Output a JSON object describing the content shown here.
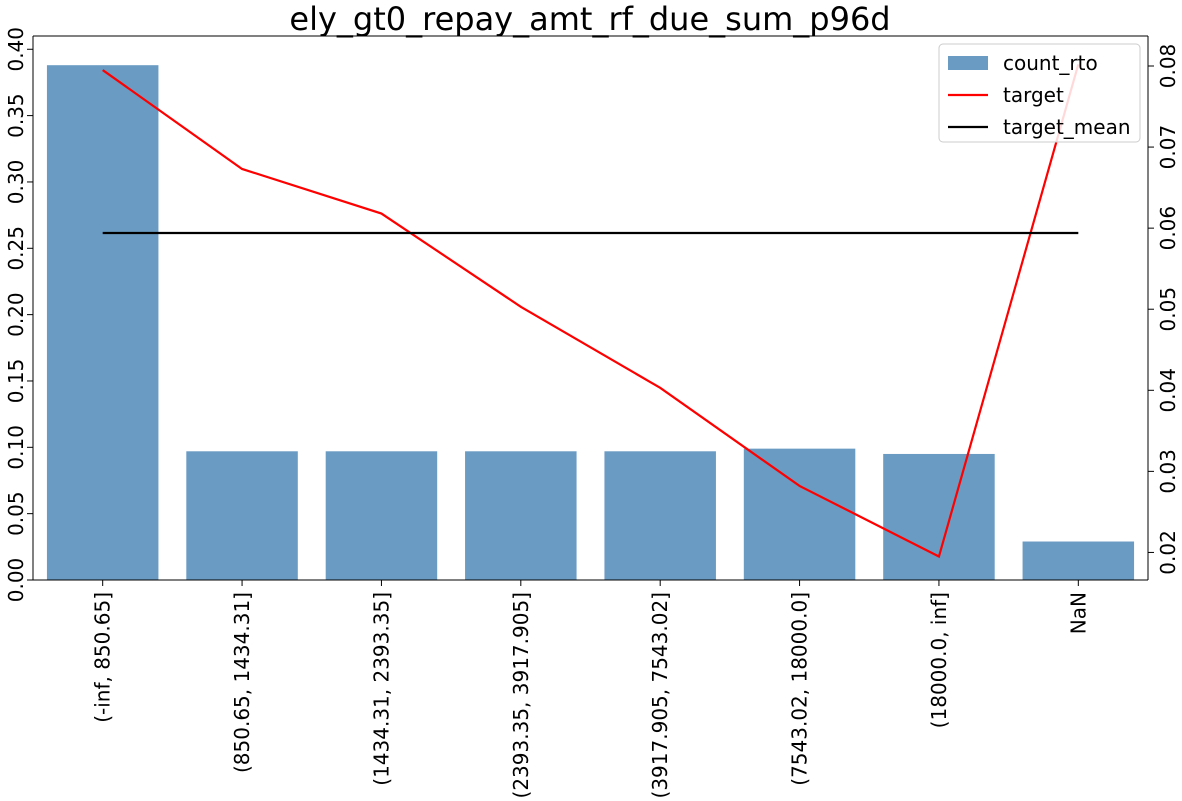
{
  "chart_data": {
    "type": "bar",
    "title": "ely_gt0_repay_amt_rf_due_sum_p96d",
    "categories": [
      "(-inf, 850.65]",
      "(850.65, 1434.31]",
      "(1434.31, 2393.35]",
      "(2393.35, 3917.905]",
      "(3917.905, 7543.02]",
      "(7543.02, 18000.0]",
      "(18000.0, inf]",
      "NaN"
    ],
    "series": [
      {
        "name": "count_rto",
        "type": "bar",
        "axis": "left",
        "color": "#6a9bc3",
        "values": [
          0.388,
          0.097,
          0.097,
          0.097,
          0.097,
          0.099,
          0.095,
          0.029
        ]
      },
      {
        "name": "target",
        "type": "line",
        "axis": "right",
        "color": "#ff0000",
        "values": [
          0.0795,
          0.0673,
          0.0618,
          0.0503,
          0.0403,
          0.0282,
          0.0195,
          0.0802
        ]
      },
      {
        "name": "target_mean",
        "type": "line",
        "axis": "right",
        "color": "#000000",
        "values": [
          0.0594,
          0.0594,
          0.0594,
          0.0594,
          0.0594,
          0.0594,
          0.0594,
          0.0594
        ]
      }
    ],
    "y_left": {
      "ylim": [
        0.0,
        0.41
      ],
      "ticks": [
        "0.00",
        "0.05",
        "0.10",
        "0.15",
        "0.20",
        "0.25",
        "0.30",
        "0.35",
        "0.40"
      ]
    },
    "y_right": {
      "ylim": [
        0.0166,
        0.0837
      ],
      "ticks": [
        "0.02",
        "0.03",
        "0.04",
        "0.05",
        "0.06",
        "0.07",
        "0.08"
      ]
    },
    "xlabel": "",
    "ylabel": "",
    "grid": false,
    "legend_position": "top-right"
  }
}
